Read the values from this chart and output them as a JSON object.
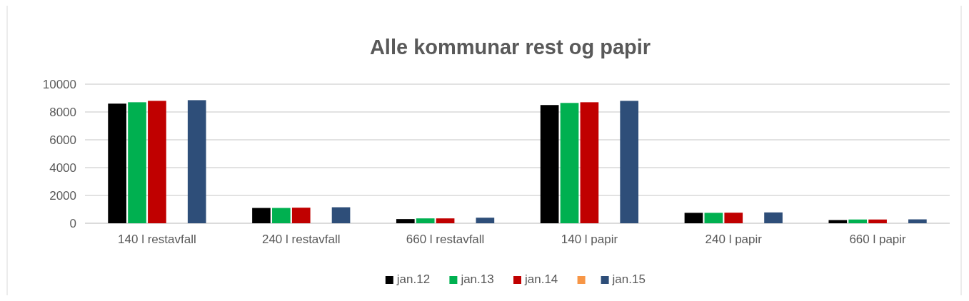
{
  "chart_data": {
    "type": "bar",
    "title": "Alle kommunar rest og papir",
    "categories": [
      "140 l restavfall",
      "240 l restavfall",
      "660 l restavfall",
      "140 l papir",
      "240 l papir",
      "660 l papir"
    ],
    "series": [
      {
        "name": "jan.12",
        "color": "#000000",
        "values": [
          8600,
          1100,
          300,
          8500,
          750,
          230
        ]
      },
      {
        "name": "jan.13",
        "color": "#00b050",
        "values": [
          8700,
          1100,
          350,
          8650,
          750,
          270
        ]
      },
      {
        "name": "jan.14",
        "color": "#c00000",
        "values": [
          8800,
          1120,
          350,
          8700,
          760,
          270
        ]
      },
      {
        "color": "#f79646",
        "values": [
          null,
          null,
          null,
          null,
          null,
          null
        ]
      },
      {
        "name": "jan.15",
        "color": "#2e4e79",
        "values": [
          8850,
          1150,
          400,
          8800,
          780,
          280
        ]
      }
    ],
    "ylim": [
      0,
      10000
    ],
    "yticks": [
      0,
      2000,
      4000,
      6000,
      8000,
      10000
    ],
    "grid": "y",
    "legend": "bottom"
  }
}
